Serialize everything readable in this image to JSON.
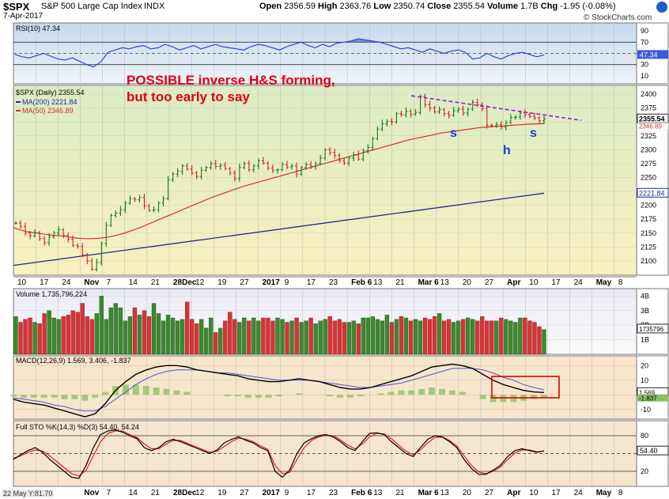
{
  "header": {
    "symbol": "$SPX",
    "name": "S&P 500 Large Cap Index",
    "exchange": "INDX",
    "date": "7-Apr-2017",
    "open_label": "Open",
    "open": "2356.59",
    "high_label": "High",
    "high": "2363.76",
    "low_label": "Low",
    "low": "2350.74",
    "close_label": "Close",
    "close": "2355.54",
    "volume_label": "Volume",
    "volume": "1.7B",
    "chg_label": "Chg",
    "chg": "-1.95 (-0.08%)",
    "logo": "© StockCharts.com"
  },
  "annotations": {
    "line1": "POSSIBLE inverse H&S forming,",
    "line2": "but too early to say",
    "s_left": "s",
    "h": "h",
    "s_right": "s"
  },
  "footer": "22 May Y:81.70",
  "colors": {
    "up": "#1a7a1a",
    "down": "#d62020",
    "ma50": "#d03030",
    "ma200": "#202a90",
    "trend": "#9a20d0",
    "rsi": "#2a4ad0",
    "macd": "#000000",
    "signal": "#5050d0",
    "hist": "#88c060",
    "box": "#e00000"
  },
  "chart_data": [
    {
      "type": "line",
      "title": "RSI(10) 47.34",
      "ylim": [
        0,
        100
      ],
      "ticks": [
        90,
        70,
        50,
        30,
        10
      ],
      "current_label": "47.34",
      "reference_lines": [
        70,
        50,
        30
      ],
      "values": [
        48,
        44,
        42,
        46,
        50,
        45,
        40,
        38,
        42,
        36,
        30,
        26,
        35,
        52,
        56,
        60,
        58,
        62,
        64,
        58,
        60,
        66,
        62,
        56,
        60,
        64,
        58,
        62,
        66,
        62,
        60,
        58,
        56,
        62,
        66,
        64,
        60,
        56,
        62,
        66,
        70,
        64,
        60,
        66,
        62,
        68,
        70,
        72,
        76,
        74,
        72,
        70,
        66,
        62,
        58,
        60,
        56,
        52,
        58,
        54,
        50,
        54,
        56,
        52,
        40,
        42,
        50,
        44,
        40,
        46,
        50,
        52,
        48,
        44,
        47.34
      ]
    },
    {
      "type": "candlestick",
      "title": "$SPX (Daily) 2355.54",
      "ylim": [
        2080,
        2410
      ],
      "ticks": [
        2400,
        2375,
        2350,
        2325,
        2300,
        2275,
        2250,
        2225,
        2200,
        2175,
        2150,
        2125,
        2100
      ],
      "current_label": "2355.54",
      "x_tick_labels": [
        "10",
        "17",
        "24",
        "Nov",
        "7",
        "14",
        "21",
        "28Dec",
        "12",
        "19",
        "27",
        "2017",
        "9",
        "17",
        "23",
        "Feb 6",
        "13",
        "21",
        "Mar 6",
        "13",
        "20",
        "27",
        "Apr",
        "10",
        "17",
        "24",
        "May",
        "8"
      ],
      "series": [
        {
          "name": "MA(200) 2221.84",
          "label": "2221.84",
          "start": 2092,
          "end": 2221.84
        },
        {
          "name": "MA(50) 2346.89",
          "label": "2346.89",
          "values": [
            2160,
            2155,
            2152,
            2150,
            2148,
            2146,
            2145,
            2143,
            2141,
            2140,
            2140,
            2141,
            2143,
            2146,
            2150,
            2155,
            2160,
            2166,
            2172,
            2178,
            2184,
            2190,
            2196,
            2202,
            2208,
            2214,
            2219,
            2224,
            2229,
            2234,
            2238,
            2242,
            2246,
            2250,
            2254,
            2258,
            2262,
            2266,
            2270,
            2274,
            2278,
            2282,
            2286,
            2290,
            2294,
            2298,
            2302,
            2306,
            2310,
            2314,
            2318,
            2321,
            2324,
            2327,
            2330,
            2332,
            2334,
            2336,
            2338,
            2340,
            2341,
            2342,
            2343,
            2344,
            2345,
            2346,
            2346.5,
            2346.89
          ]
        }
      ],
      "close": [
        2168,
        2162,
        2150,
        2145,
        2151,
        2140,
        2133,
        2143,
        2150,
        2156,
        2146,
        2139,
        2128,
        2126,
        2111,
        2100,
        2085,
        2097,
        2131,
        2164,
        2182,
        2186,
        2192,
        2204,
        2212,
        2210,
        2214,
        2199,
        2191,
        2192,
        2204,
        2212,
        2246,
        2256,
        2261,
        2271,
        2265,
        2258,
        2252,
        2263,
        2268,
        2275,
        2270,
        2272,
        2266,
        2258,
        2248,
        2268,
        2275,
        2264,
        2271,
        2280,
        2276,
        2267,
        2263,
        2264,
        2273,
        2269,
        2271,
        2256,
        2268,
        2273,
        2270,
        2275,
        2285,
        2300,
        2295,
        2290,
        2280,
        2276,
        2285,
        2291,
        2283,
        2298,
        2304,
        2320,
        2337,
        2347,
        2351,
        2350,
        2365,
        2363,
        2369,
        2364,
        2367,
        2396,
        2381,
        2375,
        2368,
        2372,
        2365,
        2362,
        2370,
        2373,
        2366,
        2373,
        2385,
        2381,
        2374,
        2344,
        2343,
        2345,
        2341,
        2349,
        2358,
        2359,
        2366,
        2363,
        2360,
        2357,
        2352,
        2355.54
      ]
    },
    {
      "type": "bar",
      "title": "Volume 1,735,796,224",
      "ticks": [
        "4B",
        "3B",
        "2B",
        "1B"
      ],
      "current_label": "1735796",
      "values": [
        2.6,
        2.2,
        2.4,
        2.5,
        2.2,
        2.1,
        2.8,
        3.0,
        2.5,
        2.4,
        2.6,
        2.7,
        3.0,
        2.9,
        3.5,
        2.6,
        2.4,
        2.8,
        4.0,
        2.4,
        3.2,
        3.5,
        3.2,
        2.3,
        2.6,
        3.2,
        2.7,
        3.0,
        2.6,
        3.5,
        2.8,
        2.3,
        2.7,
        2.5,
        2.3,
        2.4,
        3.6,
        2.4,
        2.1,
        2.4,
        1.8,
        2.5,
        1.5,
        1.8,
        2.3,
        2.9,
        2.4,
        2.2,
        2.5,
        2.3,
        2.5,
        2.3,
        2.5,
        2.5,
        2.3,
        2.5,
        2.4,
        2.2,
        2.3,
        2.5,
        2.2,
        2.3,
        2.5,
        2.1,
        2.3,
        2.4,
        2.6,
        2.3,
        2.4,
        2.2,
        2.2,
        2.3,
        2.1,
        2.5,
        2.5,
        2.6,
        2.4,
        2.3,
        2.7,
        2.2,
        2.4,
        2.6,
        2.5,
        2.3,
        2.4,
        2.3,
        2.5,
        2.4,
        2.6,
        2.8,
        2.3,
        2.4,
        2.2,
        2.3,
        2.4,
        2.5,
        2.4,
        2.3,
        2.6,
        2.3,
        2.3,
        2.3,
        2.5,
        2.4,
        2.3,
        2.2,
        2.5,
        2.5,
        2.3,
        2.2,
        1.9,
        1.7
      ]
    },
    {
      "type": "line",
      "title": "MACD(12,26,9) 1.569, 3.406, -1.837",
      "ylim": [
        -15,
        25
      ],
      "ticks": [
        "20",
        "10",
        "0",
        "-10"
      ],
      "current_labels": [
        "1.569",
        "-1.837"
      ],
      "series": [
        {
          "name": "MACD",
          "values": [
            -3,
            -5,
            -6,
            -7,
            -9,
            -11,
            -13,
            -15,
            -13,
            -6,
            3,
            9,
            14,
            17,
            19,
            20,
            20,
            19,
            17,
            16,
            15,
            14,
            13,
            11,
            10,
            9,
            9,
            10,
            11,
            10,
            9,
            7,
            5,
            4,
            4,
            5,
            7,
            9,
            11,
            13,
            16,
            19,
            20,
            21,
            20,
            18,
            14,
            10,
            7,
            5,
            3,
            2,
            1.569
          ]
        },
        {
          "name": "Signal",
          "values": [
            -2,
            -3,
            -4,
            -5,
            -7,
            -8,
            -10,
            -11,
            -11,
            -8,
            -3,
            2,
            7,
            11,
            14,
            16,
            17,
            17,
            17,
            16,
            15,
            15,
            14,
            13,
            12,
            11,
            10,
            10,
            10,
            10,
            9,
            8,
            7,
            6,
            5,
            5,
            6,
            7,
            8,
            10,
            12,
            14,
            16,
            18,
            18,
            18,
            17,
            15,
            12,
            10,
            7,
            5,
            3.406
          ]
        },
        {
          "name": "Histogram",
          "values": [
            -1,
            -2,
            -2,
            -2,
            -2,
            -3,
            -3,
            -4,
            -2,
            2,
            6,
            7,
            7,
            6,
            5,
            4,
            3,
            2,
            0,
            0,
            0,
            -1,
            -1,
            -2,
            -2,
            -2,
            -1,
            0,
            1,
            0,
            0,
            -1,
            -2,
            -2,
            -1,
            0,
            1,
            2,
            3,
            3,
            4,
            5,
            4,
            3,
            2,
            0,
            -3,
            -5,
            -5,
            -5,
            -4,
            -3,
            -1.837
          ]
        }
      ]
    },
    {
      "type": "line",
      "title": "Full STO %K(14,3) %D(3) 54.40, 54.24",
      "ylim": [
        0,
        100
      ],
      "ticks": [
        80,
        20
      ],
      "current_label": "54.40",
      "reference_lines": [
        80,
        50,
        20
      ],
      "series": [
        {
          "name": "%K",
          "values": [
            40,
            48,
            55,
            60,
            52,
            40,
            30,
            20,
            10,
            8,
            30,
            60,
            82,
            88,
            90,
            86,
            80,
            75,
            60,
            55,
            60,
            70,
            74,
            70,
            65,
            60,
            55,
            50,
            56,
            68,
            74,
            78,
            72,
            68,
            60,
            55,
            20,
            10,
            22,
            50,
            68,
            75,
            80,
            82,
            78,
            70,
            60,
            55,
            70,
            84,
            85,
            82,
            70,
            60,
            50,
            45,
            60,
            74,
            80,
            78,
            70,
            60,
            40,
            25,
            15,
            15,
            22,
            30,
            45,
            55,
            58,
            55,
            52,
            54.4
          ]
        },
        {
          "name": "%D",
          "values": [
            42,
            46,
            52,
            56,
            54,
            46,
            36,
            26,
            16,
            12,
            22,
            46,
            70,
            84,
            88,
            88,
            82,
            77,
            66,
            58,
            58,
            66,
            72,
            72,
            67,
            62,
            57,
            52,
            54,
            62,
            70,
            76,
            74,
            70,
            63,
            57,
            30,
            16,
            18,
            40,
            60,
            72,
            78,
            81,
            80,
            73,
            64,
            58,
            66,
            78,
            84,
            83,
            75,
            64,
            54,
            48,
            56,
            68,
            77,
            78,
            72,
            63,
            46,
            30,
            19,
            16,
            20,
            27,
            40,
            51,
            56,
            56,
            53,
            54.24
          ]
        }
      ]
    }
  ]
}
